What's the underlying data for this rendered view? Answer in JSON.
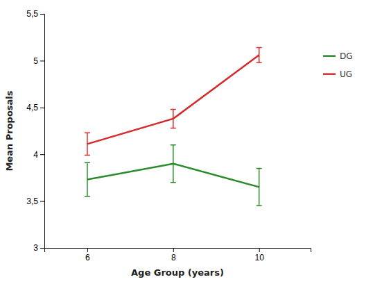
{
  "chart_data": {
    "type": "line",
    "x": [
      6,
      8,
      10
    ],
    "series": [
      {
        "name": "DG",
        "color": "#2a8a2a",
        "values": [
          3.73,
          3.9,
          3.65
        ],
        "errors": [
          0.18,
          0.2,
          0.2
        ]
      },
      {
        "name": "UG",
        "color": "#d42b2b",
        "values": [
          4.11,
          4.38,
          5.06
        ],
        "errors": [
          0.12,
          0.1,
          0.08
        ]
      }
    ],
    "xlabel": "Age Group (years)",
    "ylabel": "Mean Proposals",
    "xlim": [
      5.0,
      11.2
    ],
    "xticks": [
      6,
      8,
      10
    ],
    "ylim": [
      3.0,
      5.5
    ],
    "yticks": [
      3,
      {
        "value": 3.5,
        "label": "3,5"
      },
      4,
      {
        "value": 4.5,
        "label": "4,5"
      },
      5,
      {
        "value": 5.5,
        "label": "5,5"
      }
    ],
    "grid": false,
    "legend": "right"
  }
}
